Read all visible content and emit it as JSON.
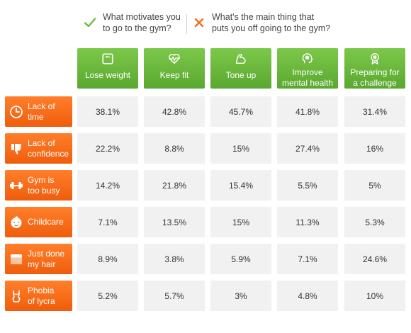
{
  "legend": {
    "motivates": "What motivates you\nto go to the gym?",
    "puts_off": "What's the main thing that\nputs you off going to the gym?"
  },
  "colors": {
    "motivation_green": "#6cbd3a",
    "barrier_orange": "#f76b1c",
    "cell_bg": "#f1f1f1"
  },
  "chart_data": {
    "type": "table",
    "columns": [
      {
        "label": "Lose weight",
        "icon": "scale-icon"
      },
      {
        "label": "Keep fit",
        "icon": "heartbeat-icon"
      },
      {
        "label": "Tone up",
        "icon": "flexed-arm-icon"
      },
      {
        "label": "Improve\nmental health",
        "icon": "brain-head-icon"
      },
      {
        "label": "Preparing for\na challenge",
        "icon": "medal-icon"
      }
    ],
    "rows": [
      {
        "label": "Lack of\ntime",
        "icon": "clock-icon",
        "values": [
          "38.1%",
          "42.8%",
          "45.7%",
          "41.8%",
          "31.4%"
        ]
      },
      {
        "label": "Lack of\nconfidence",
        "icon": "thumbs-down-icon",
        "values": [
          "22.2%",
          "8.8%",
          "15%",
          "27.4%",
          "16%"
        ]
      },
      {
        "label": "Gym is\ntoo busy",
        "icon": "dumbbell-icon",
        "values": [
          "14.2%",
          "21.8%",
          "15.4%",
          "5.5%",
          "5%"
        ]
      },
      {
        "label": "Childcare",
        "icon": "baby-icon",
        "values": [
          "7.1%",
          "13.5%",
          "15%",
          "11.3%",
          "5.3%"
        ]
      },
      {
        "label": "Just done\nmy hair",
        "icon": "comb-icon",
        "values": [
          "8.9%",
          "3.8%",
          "5.9%",
          "7.1%",
          "24.6%"
        ]
      },
      {
        "label": "Phobia\nof lycra",
        "icon": "swimsuit-icon",
        "values": [
          "5.2%",
          "5.7%",
          "3%",
          "4.8%",
          "10%"
        ]
      }
    ]
  }
}
